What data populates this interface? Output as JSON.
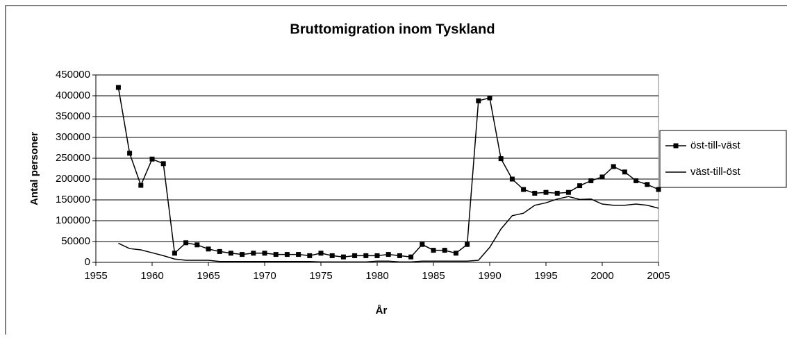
{
  "chart_data": {
    "type": "line",
    "title": "Bruttomigration inom Tyskland",
    "xlabel": "År",
    "ylabel": "Antal personer",
    "x": [
      1957,
      1958,
      1959,
      1960,
      1961,
      1962,
      1963,
      1964,
      1965,
      1966,
      1967,
      1968,
      1969,
      1970,
      1971,
      1972,
      1973,
      1974,
      1975,
      1976,
      1977,
      1978,
      1979,
      1980,
      1981,
      1982,
      1983,
      1984,
      1985,
      1986,
      1987,
      1988,
      1989,
      1990,
      1991,
      1992,
      1993,
      1994,
      1995,
      1996,
      1997,
      1998,
      1999,
      2000,
      2001,
      2002,
      2003,
      2004,
      2005
    ],
    "series": [
      {
        "name": "öst-till-väst",
        "color": "#000000",
        "marker": "square",
        "values": [
          420000,
          262000,
          185000,
          248000,
          237000,
          22000,
          47000,
          42000,
          32000,
          26000,
          22000,
          19000,
          22000,
          22000,
          19000,
          19000,
          19000,
          16000,
          22000,
          16000,
          13000,
          16000,
          16000,
          16000,
          19000,
          16000,
          13000,
          43000,
          29000,
          29000,
          22000,
          43000,
          388000,
          395000,
          249000,
          200000,
          175000,
          166000,
          168000,
          166000,
          168000,
          184000,
          196000,
          205000,
          230000,
          217000,
          196000,
          187000,
          175000
        ]
      },
      {
        "name": "väst-till-öst",
        "color": "#000000",
        "marker": "none",
        "values": [
          46000,
          33000,
          30000,
          23000,
          16000,
          8000,
          5000,
          5000,
          5000,
          2000,
          2000,
          2000,
          2000,
          2000,
          2000,
          2000,
          2000,
          2000,
          1000,
          1000,
          1000,
          1000,
          1000,
          3000,
          3000,
          1000,
          1000,
          3000,
          3000,
          3000,
          3000,
          3000,
          5000,
          36000,
          80000,
          112000,
          118000,
          137000,
          143000,
          152000,
          158000,
          151000,
          152000,
          140000,
          137000,
          137000,
          140000,
          137000,
          130000
        ]
      }
    ],
    "xlim": [
      1955,
      2005
    ],
    "xticks": [
      1955,
      1960,
      1965,
      1970,
      1975,
      1980,
      1985,
      1990,
      1995,
      2000,
      2005
    ],
    "ylim": [
      0,
      450000
    ],
    "yticks": [
      0,
      50000,
      100000,
      150000,
      200000,
      250000,
      300000,
      350000,
      400000,
      450000
    ],
    "grid": true,
    "legend": "right"
  }
}
